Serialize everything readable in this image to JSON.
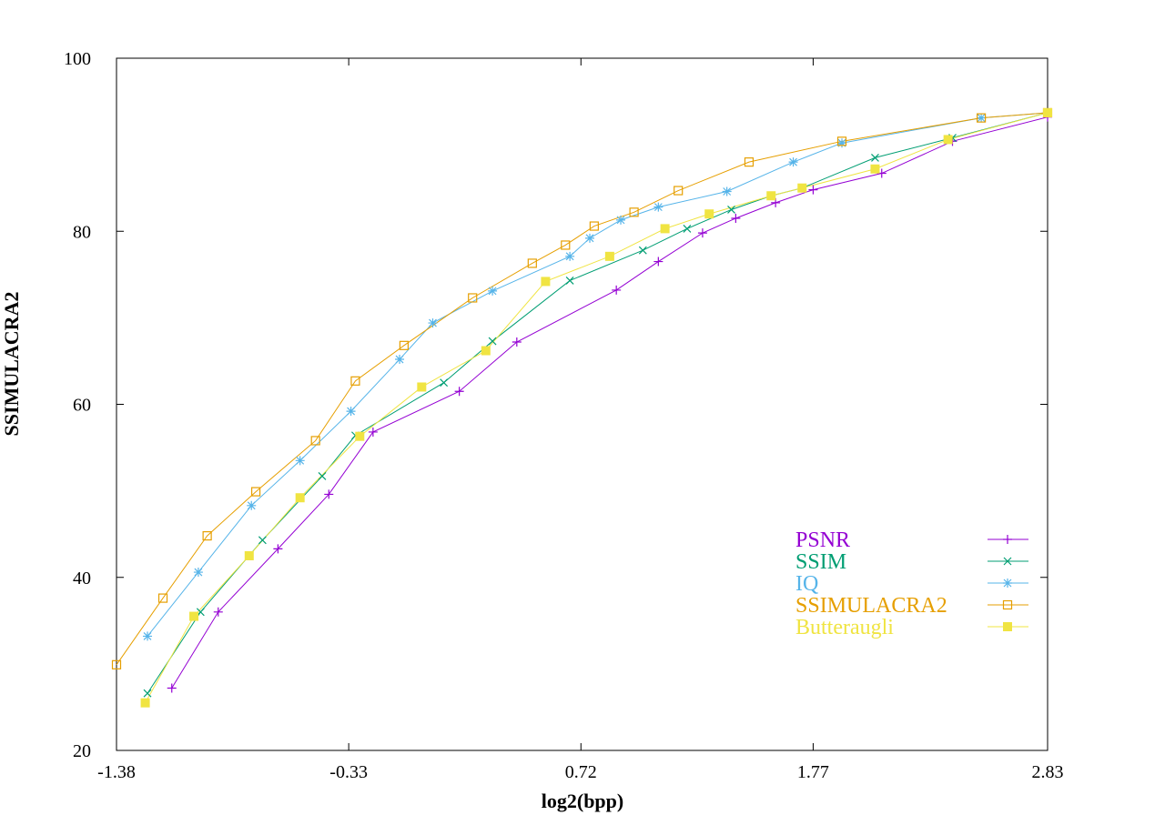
{
  "chart_data": {
    "type": "line",
    "title": "",
    "xlabel": "log2(bpp)",
    "ylabel": "SSIMULACRA2",
    "xlim": [
      -1.38,
      2.83
    ],
    "ylim": [
      20,
      100
    ],
    "x_ticks": [
      "-1.38",
      "-0.33",
      "0.72",
      "1.77",
      "2.83"
    ],
    "y_ticks": [
      "20",
      "40",
      "60",
      "80",
      "100"
    ],
    "grid": false,
    "legend_position": "bottom-right",
    "series": [
      {
        "name": "PSNR",
        "color": "#9400d3",
        "marker": "plus",
        "points": [
          [
            -1.13,
            27.2
          ],
          [
            -0.92,
            36.0
          ],
          [
            -0.65,
            43.3
          ],
          [
            -0.42,
            49.6
          ],
          [
            -0.22,
            56.8
          ],
          [
            0.17,
            61.5
          ],
          [
            0.43,
            67.2
          ],
          [
            0.88,
            73.2
          ],
          [
            1.07,
            76.5
          ],
          [
            1.27,
            79.8
          ],
          [
            1.42,
            81.5
          ],
          [
            1.6,
            83.3
          ],
          [
            1.77,
            84.8
          ],
          [
            2.08,
            86.7
          ],
          [
            2.4,
            90.4
          ],
          [
            2.83,
            93.2
          ]
        ]
      },
      {
        "name": "SSIM",
        "color": "#009e73",
        "marker": "x",
        "points": [
          [
            -1.24,
            26.6
          ],
          [
            -1.0,
            36.0
          ],
          [
            -0.72,
            44.3
          ],
          [
            -0.45,
            51.7
          ],
          [
            -0.3,
            56.4
          ],
          [
            0.1,
            62.5
          ],
          [
            0.32,
            67.3
          ],
          [
            0.67,
            74.3
          ],
          [
            1.0,
            77.8
          ],
          [
            1.2,
            80.3
          ],
          [
            1.4,
            82.5
          ],
          [
            1.58,
            84.1
          ],
          [
            1.72,
            85.0
          ],
          [
            2.05,
            88.5
          ],
          [
            2.4,
            90.8
          ],
          [
            2.83,
            93.7
          ]
        ]
      },
      {
        "name": "IQ",
        "color": "#56b4e9",
        "marker": "star",
        "points": [
          [
            -1.24,
            33.2
          ],
          [
            -1.01,
            40.6
          ],
          [
            -0.77,
            48.3
          ],
          [
            -0.55,
            53.5
          ],
          [
            -0.32,
            59.2
          ],
          [
            -0.1,
            65.2
          ],
          [
            0.05,
            69.4
          ],
          [
            0.32,
            73.1
          ],
          [
            0.67,
            77.1
          ],
          [
            0.76,
            79.2
          ],
          [
            0.9,
            81.3
          ],
          [
            1.07,
            82.8
          ],
          [
            1.38,
            84.6
          ],
          [
            1.68,
            88.0
          ],
          [
            1.9,
            90.2
          ],
          [
            2.53,
            93.1
          ],
          [
            2.83,
            93.7
          ]
        ]
      },
      {
        "name": "SSIMULACRA2",
        "color": "#e69f00",
        "marker": "square",
        "points": [
          [
            -1.38,
            29.9
          ],
          [
            -1.17,
            37.6
          ],
          [
            -0.97,
            44.8
          ],
          [
            -0.75,
            49.9
          ],
          [
            -0.48,
            55.8
          ],
          [
            -0.3,
            62.7
          ],
          [
            -0.08,
            66.8
          ],
          [
            0.23,
            72.3
          ],
          [
            0.5,
            76.3
          ],
          [
            0.65,
            78.4
          ],
          [
            0.78,
            80.6
          ],
          [
            0.96,
            82.2
          ],
          [
            1.16,
            84.7
          ],
          [
            1.48,
            88.0
          ],
          [
            1.9,
            90.4
          ],
          [
            2.53,
            93.1
          ],
          [
            2.83,
            93.7
          ]
        ]
      },
      {
        "name": "Butteraugli",
        "color": "#f0e442",
        "marker": "filled-square",
        "points": [
          [
            -1.25,
            25.5
          ],
          [
            -1.03,
            35.5
          ],
          [
            -0.78,
            42.5
          ],
          [
            -0.55,
            49.2
          ],
          [
            -0.28,
            56.3
          ],
          [
            0.0,
            62.0
          ],
          [
            0.29,
            66.2
          ],
          [
            0.56,
            74.2
          ],
          [
            0.85,
            77.1
          ],
          [
            1.1,
            80.3
          ],
          [
            1.3,
            82.0
          ],
          [
            1.58,
            84.1
          ],
          [
            1.72,
            85.0
          ],
          [
            2.05,
            87.2
          ],
          [
            2.38,
            90.6
          ],
          [
            2.83,
            93.7
          ]
        ]
      }
    ]
  }
}
